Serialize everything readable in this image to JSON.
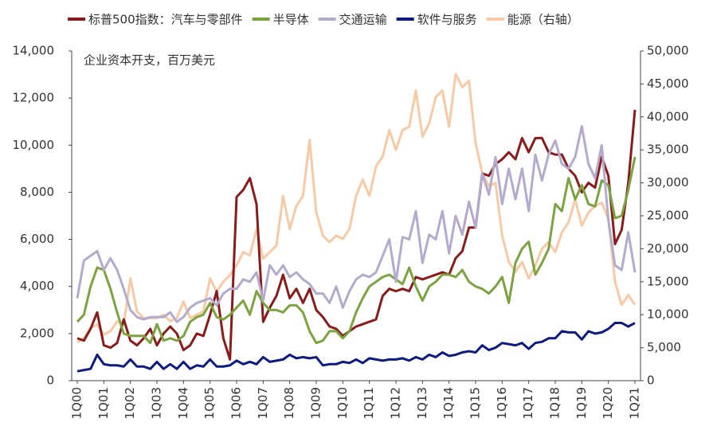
{
  "chart_data": {
    "type": "line",
    "annotation": "企业资本开支，百万美元",
    "categories": [
      "1Q00",
      null,
      null,
      null,
      "1Q01",
      null,
      null,
      null,
      "1Q02",
      null,
      null,
      null,
      "1Q03",
      null,
      null,
      null,
      "1Q04",
      null,
      null,
      null,
      "1Q05",
      null,
      null,
      null,
      "1Q06",
      null,
      null,
      null,
      "1Q07",
      null,
      null,
      null,
      "1Q08",
      null,
      null,
      null,
      "1Q09",
      null,
      null,
      null,
      "1Q10",
      null,
      null,
      null,
      "1Q11",
      null,
      null,
      null,
      "1Q12",
      null,
      null,
      null,
      "1Q13",
      null,
      null,
      null,
      "1Q14",
      null,
      null,
      null,
      "1Q15",
      null,
      null,
      null,
      "1Q16",
      null,
      null,
      null,
      "1Q17",
      null,
      null,
      null,
      "1Q18",
      null,
      null,
      null,
      "1Q19",
      null,
      null,
      null,
      "1Q20",
      null,
      null,
      null,
      "1Q21"
    ],
    "series": [
      {
        "name": "标普500指数：汽车与零部件",
        "color": "#8b1a1a",
        "values": [
          1800,
          1700,
          2200,
          2900,
          1500,
          1400,
          1600,
          2600,
          1700,
          1500,
          1800,
          2200,
          1500,
          2000,
          2300,
          2000,
          1300,
          1500,
          2000,
          1900,
          2800,
          3800,
          1800,
          900,
          7800,
          8100,
          8600,
          7500,
          2500,
          3100,
          3600,
          4500,
          3500,
          3900,
          3300,
          3900,
          3000,
          2700,
          2300,
          2200,
          1900,
          2100,
          2300,
          2400,
          2500,
          2600,
          3600,
          3900,
          3800,
          3900,
          3800,
          4400,
          4300,
          4400,
          4500,
          4600,
          4500,
          5200,
          5500,
          6500,
          6500,
          8800,
          8700,
          9200,
          9400,
          9700,
          9400,
          10300,
          9700,
          10300,
          10300,
          9700,
          9600,
          9600,
          9000,
          8700,
          8000,
          8400,
          8200,
          9500,
          8700,
          5800,
          6400,
          8400,
          11500
        ]
      },
      {
        "name": "半导体",
        "color": "#7ba33f",
        "values": [
          2500,
          2800,
          4000,
          4800,
          4700,
          3900,
          2900,
          2000,
          1900,
          1900,
          1900,
          1600,
          2400,
          1700,
          1800,
          1700,
          1900,
          2500,
          2700,
          2800,
          3300,
          2700,
          2600,
          2800,
          3100,
          3400,
          2800,
          3800,
          3300,
          3000,
          3000,
          2900,
          3200,
          3200,
          2900,
          2100,
          1600,
          1700,
          2100,
          2100,
          1800,
          2100,
          2900,
          3500,
          4000,
          4200,
          4400,
          4500,
          4300,
          4100,
          4800,
          4000,
          3400,
          4000,
          4200,
          4500,
          4500,
          4400,
          4700,
          4200,
          4000,
          3900,
          3700,
          4000,
          4400,
          3300,
          5000,
          5600,
          5900,
          4500,
          5000,
          5600,
          7500,
          7200,
          8600,
          7700,
          8300,
          7500,
          7400,
          8500,
          8300,
          6900,
          7000,
          8100,
          9500
        ]
      },
      {
        "name": "交通运输",
        "color": "#b3aacd",
        "values": [
          3500,
          5100,
          5300,
          5500,
          4700,
          5200,
          4700,
          3900,
          3000,
          2700,
          2600,
          2700,
          2700,
          2700,
          2900,
          2500,
          2700,
          3100,
          3300,
          3400,
          3500,
          3200,
          3700,
          3900,
          3900,
          4300,
          4200,
          4600,
          3400,
          4900,
          4500,
          4900,
          4400,
          4600,
          4300,
          4100,
          3700,
          3700,
          3300,
          4000,
          3100,
          3800,
          4300,
          4500,
          4400,
          4600,
          5300,
          6000,
          4200,
          6100,
          6000,
          7200,
          5000,
          6200,
          6000,
          7200,
          5400,
          7000,
          6200,
          7600,
          6500,
          8800,
          7900,
          9500,
          7500,
          9000,
          7700,
          9000,
          7200,
          9600,
          8500,
          9600,
          10200,
          9200,
          9000,
          9500,
          10800,
          9200,
          8600,
          10000,
          6800,
          4900,
          4700,
          6300,
          4600
        ]
      },
      {
        "name": "软件与服务",
        "color": "#0d1a80",
        "values": [
          400,
          450,
          500,
          1100,
          700,
          650,
          650,
          600,
          900,
          600,
          600,
          500,
          800,
          500,
          700,
          500,
          800,
          500,
          650,
          600,
          900,
          600,
          600,
          650,
          850,
          700,
          800,
          700,
          1000,
          800,
          850,
          900,
          1100,
          950,
          1000,
          950,
          1000,
          650,
          700,
          700,
          800,
          750,
          900,
          750,
          950,
          900,
          850,
          900,
          900,
          950,
          850,
          1000,
          900,
          1100,
          1000,
          1200,
          1050,
          1100,
          1200,
          1250,
          1200,
          1500,
          1300,
          1400,
          1600,
          1550,
          1500,
          1600,
          1350,
          1600,
          1650,
          1800,
          1800,
          2100,
          2050,
          2050,
          1750,
          2100,
          2000,
          2050,
          2200,
          2450,
          2450,
          2300,
          2450
        ]
      },
      {
        "name": "能源（右轴）",
        "color": "#f7caa5",
        "axis": "y2",
        "values": [
          5800,
          6500,
          8000,
          8500,
          7000,
          7500,
          9000,
          8500,
          15500,
          10500,
          9500,
          9500,
          9500,
          10000,
          9000,
          9500,
          12000,
          9500,
          10000,
          10500,
          15500,
          13500,
          15000,
          16000,
          17500,
          19500,
          19000,
          23000,
          18500,
          19500,
          20500,
          28000,
          23000,
          26500,
          28000,
          36500,
          25500,
          22000,
          21000,
          22000,
          21500,
          23000,
          28000,
          30500,
          28000,
          32500,
          34000,
          38000,
          35000,
          38000,
          38500,
          44000,
          37000,
          39000,
          43000,
          44000,
          38500,
          46500,
          44500,
          45500,
          36000,
          31500,
          29500,
          30000,
          22000,
          18000,
          16500,
          18000,
          15500,
          17500,
          20000,
          21000,
          19500,
          22500,
          24000,
          27500,
          23500,
          25500,
          26500,
          27000,
          24500,
          15000,
          11500,
          13000,
          11500
        ]
      }
    ],
    "ylim": [
      0,
      14000
    ],
    "yticks": [
      0,
      {
        "value": 2000,
        "label": "2,000"
      },
      {
        "value": 4000,
        "label": "4,000"
      },
      {
        "value": 6000,
        "label": "6,000"
      },
      {
        "value": 8000,
        "label": "8,000"
      },
      {
        "value": 10000,
        "label": "10,000"
      },
      {
        "value": 12000,
        "label": "12,000"
      },
      {
        "value": 14000,
        "label": "14,000"
      }
    ],
    "y2lim": [
      0,
      50000
    ],
    "y2ticks": [
      0,
      {
        "value": 5000,
        "label": "5,000"
      },
      {
        "value": 10000,
        "label": "10,000"
      },
      {
        "value": 15000,
        "label": "15,000"
      },
      {
        "value": 20000,
        "label": "20,000"
      },
      {
        "value": 25000,
        "label": "25,000"
      },
      {
        "value": 30000,
        "label": "30,000"
      },
      {
        "value": 35000,
        "label": "35,000"
      },
      {
        "value": 40000,
        "label": "40,000"
      },
      {
        "value": 45000,
        "label": "45,000"
      },
      {
        "value": 50000,
        "label": "50,000"
      }
    ]
  }
}
